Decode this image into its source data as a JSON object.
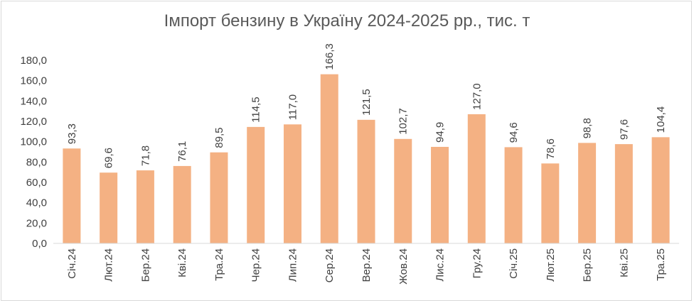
{
  "chart_data": {
    "type": "bar",
    "title": "Імпорт бензину в Україну 2024-2025 рр., тис. т",
    "xlabel": "",
    "ylabel": "",
    "categories": [
      "Січ.24",
      "Лют.24",
      "Бер.24",
      "Кві.24",
      "Тра.24",
      "Чер.24",
      "Лип.24",
      "Сер.24",
      "Вер.24",
      "Жов.24",
      "Лис.24",
      "Гру.24",
      "Січ.25",
      "Лют.25",
      "Бер.25",
      "Кві.25",
      "Тра.25"
    ],
    "values": [
      93.3,
      69.6,
      71.8,
      76.1,
      89.5,
      114.5,
      117.0,
      166.3,
      121.5,
      102.7,
      94.9,
      127.0,
      94.6,
      78.6,
      98.8,
      97.6,
      104.4
    ],
    "data_labels": [
      "93,3",
      "69,6",
      "71,8",
      "76,1",
      "89,5",
      "114,5",
      "117,0",
      "166,3",
      "121,5",
      "102,7",
      "94,9",
      "127,0",
      "94,6",
      "78,6",
      "98,8",
      "97,6",
      "104,4"
    ],
    "yticks": [
      0,
      20,
      40,
      60,
      80,
      100,
      120,
      140,
      160,
      180
    ],
    "ytick_labels": [
      "0,0",
      "20,0",
      "40,0",
      "60,0",
      "80,0",
      "100,0",
      "120,0",
      "140,0",
      "160,0",
      "180,0"
    ],
    "ylim": [
      0,
      180
    ],
    "grid": false,
    "legend": "none",
    "bar_color": "#f4b183",
    "axis_color": "#d9d9d9"
  }
}
